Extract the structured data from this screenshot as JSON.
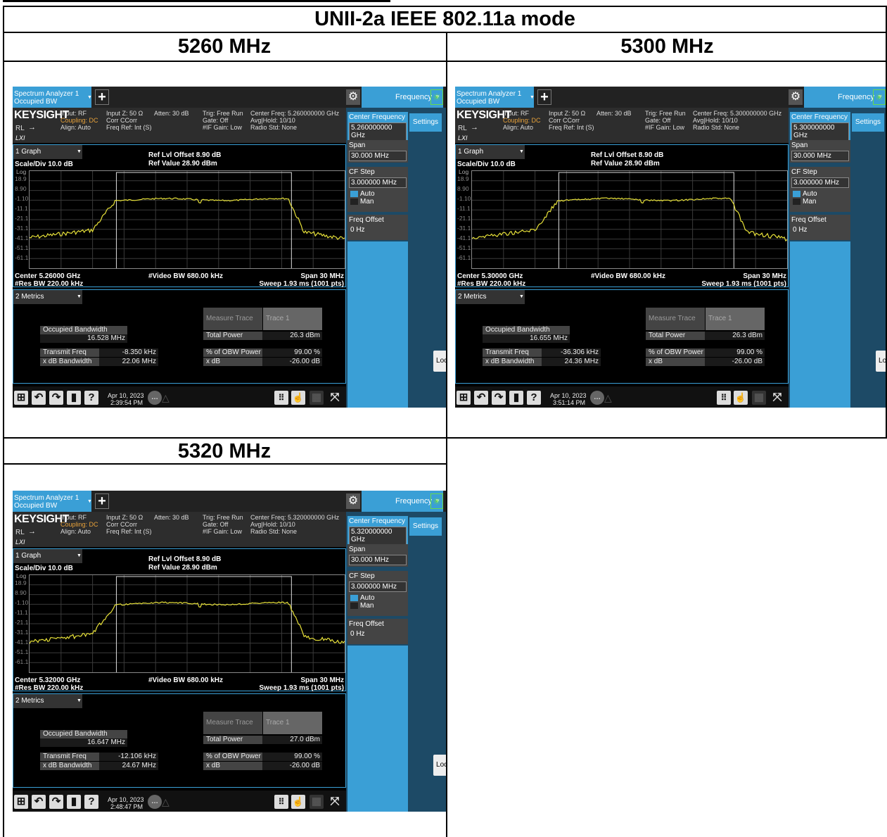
{
  "document": {
    "title": "UNII-2a IEEE 802.11a mode",
    "panels": [
      {
        "heading": "5260 MHz",
        "analyzer": {
          "tab_label_1": "Spectrum Analyzer 1",
          "tab_label_2": "Occupied BW",
          "mode_button": "Frequency",
          "brand": "KEYSIGHT",
          "status": {
            "input": "Input: RF",
            "coupling": "Coupling: DC",
            "align": "Align: Auto",
            "input_z": "Input Z: 50 Ω",
            "corr": "Corr CCorr",
            "freq_ref": "Freq Ref: Int (S)",
            "atten": "Atten: 30 dB",
            "trig": "Trig: Free Run",
            "gate": "Gate: Off",
            "if_gain": "#IF Gain: Low",
            "center_freq": "Center Freq: 5.260000000 GHz",
            "avg_hold": "Avg|Hold: 10/10",
            "radio_std": "Radio Std: None",
            "rl": "RL"
          },
          "graph_dropdown": "1 Graph",
          "ref_offset": "Ref Lvl Offset 8.90 dB",
          "ref_value": "Ref Value 28.90 dBm",
          "scale": "Scale/Div 10.0 dB",
          "log_label": "Log",
          "y_ticks": [
            "18.9",
            "8.90",
            "-1.10",
            "-11.1",
            "-21.1",
            "-31.1",
            "-41.1",
            "-51.1",
            "-61.1"
          ],
          "center": "Center 5.26000 GHz",
          "res_bw": "#Res BW 220.00 kHz",
          "video_bw": "#Video BW 680.00 kHz",
          "span": "Span 30 MHz",
          "sweep": "Sweep 1.93 ms (1001 pts)",
          "metrics_dropdown": "2 Metrics",
          "measure_trace": "Measure Trace",
          "trace": "Trace 1",
          "obw_label": "Occupied Bandwidth",
          "obw_value": "16.528 MHz",
          "tfe_label": "Transmit Freq Error",
          "tfe_value": "-8.350 kHz",
          "xdb_bw_label": "x dB Bandwidth",
          "xdb_bw_value": "22.06 MHz",
          "total_power_label": "Total Power",
          "total_power_value": "26.3 dBm",
          "obw_pct_label": "% of OBW Power",
          "obw_pct_value": "99.00 %",
          "xdb_label": "x dB",
          "xdb_value": "-26.00 dB",
          "date": "Apr 10, 2023",
          "time": "2:39:54 PM",
          "softkeys": {
            "center_freq_label": "Center Frequency",
            "center_freq_value": "5.260000000 GHz",
            "span_label": "Span",
            "span_value": "30.000 MHz",
            "cf_step_label": "CF Step",
            "cf_step_value": "3.000000 MHz",
            "auto": "Auto",
            "man": "Man",
            "freq_offset_label": "Freq Offset",
            "freq_offset_value": "0 Hz",
            "settings": "Settings",
            "local": "Local"
          }
        }
      },
      {
        "heading": "5300 MHz",
        "analyzer": {
          "tab_label_1": "Spectrum Analyzer 1",
          "tab_label_2": "Occupied BW",
          "mode_button": "Frequency",
          "brand": "KEYSIGHT",
          "status": {
            "input": "Input: RF",
            "coupling": "Coupling: DC",
            "align": "Align: Auto",
            "input_z": "Input Z: 50 Ω",
            "corr": "Corr CCorr",
            "freq_ref": "Freq Ref: Int (S)",
            "atten": "Atten: 30 dB",
            "trig": "Trig: Free Run",
            "gate": "Gate: Off",
            "if_gain": "#IF Gain: Low",
            "center_freq": "Center Freq: 5.300000000 GHz",
            "avg_hold": "Avg|Hold: 10/10",
            "radio_std": "Radio Std: None",
            "rl": "RL"
          },
          "graph_dropdown": "1 Graph",
          "ref_offset": "Ref Lvl Offset 8.90 dB",
          "ref_value": "Ref Value 28.90 dBm",
          "scale": "Scale/Div 10.0 dB",
          "log_label": "Log",
          "y_ticks": [
            "18.9",
            "8.90",
            "-1.10",
            "-11.1",
            "-21.1",
            "-31.1",
            "-41.1",
            "-51.1",
            "-61.1"
          ],
          "center": "Center 5.30000 GHz",
          "res_bw": "#Res BW 220.00 kHz",
          "video_bw": "#Video BW 680.00 kHz",
          "span": "Span 30 MHz",
          "sweep": "Sweep 1.93 ms (1001 pts)",
          "metrics_dropdown": "2 Metrics",
          "measure_trace": "Measure Trace",
          "trace": "Trace 1",
          "obw_label": "Occupied Bandwidth",
          "obw_value": "16.655 MHz",
          "tfe_label": "Transmit Freq Error",
          "tfe_value": "-36.306 kHz",
          "xdb_bw_label": "x dB Bandwidth",
          "xdb_bw_value": "24.36 MHz",
          "total_power_label": "Total Power",
          "total_power_value": "26.3 dBm",
          "obw_pct_label": "% of OBW Power",
          "obw_pct_value": "99.00 %",
          "xdb_label": "x dB",
          "xdb_value": "-26.00 dB",
          "date": "Apr 10, 2023",
          "time": "3:51:14 PM",
          "softkeys": {
            "center_freq_label": "Center Frequency",
            "center_freq_value": "5.300000000 GHz",
            "span_label": "Span",
            "span_value": "30.000 MHz",
            "cf_step_label": "CF Step",
            "cf_step_value": "3.000000 MHz",
            "auto": "Auto",
            "man": "Man",
            "freq_offset_label": "Freq Offset",
            "freq_offset_value": "0 Hz",
            "settings": "Settings",
            "local": "Local"
          }
        }
      },
      {
        "heading": "5320 MHz",
        "analyzer": {
          "tab_label_1": "Spectrum Analyzer 1",
          "tab_label_2": "Occupied BW",
          "mode_button": "Frequency",
          "brand": "KEYSIGHT",
          "status": {
            "input": "Input: RF",
            "coupling": "Coupling: DC",
            "align": "Align: Auto",
            "input_z": "Input Z: 50 Ω",
            "corr": "Corr CCorr",
            "freq_ref": "Freq Ref: Int (S)",
            "atten": "Atten: 30 dB",
            "trig": "Trig: Free Run",
            "gate": "Gate: Off",
            "if_gain": "#IF Gain: Low",
            "center_freq": "Center Freq: 5.320000000 GHz",
            "avg_hold": "Avg|Hold: 10/10",
            "radio_std": "Radio Std: None",
            "rl": "RL"
          },
          "graph_dropdown": "1 Graph",
          "ref_offset": "Ref Lvl Offset 8.90 dB",
          "ref_value": "Ref Value 28.90 dBm",
          "scale": "Scale/Div 10.0 dB",
          "log_label": "Log",
          "y_ticks": [
            "18.9",
            "8.90",
            "-1.10",
            "-11.1",
            "-21.1",
            "-31.1",
            "-41.1",
            "-51.1",
            "-61.1"
          ],
          "center": "Center 5.32000 GHz",
          "res_bw": "#Res BW 220.00 kHz",
          "video_bw": "#Video BW 680.00 kHz",
          "span": "Span 30 MHz",
          "sweep": "Sweep 1.93 ms (1001 pts)",
          "metrics_dropdown": "2 Metrics",
          "measure_trace": "Measure Trace",
          "trace": "Trace 1",
          "obw_label": "Occupied Bandwidth",
          "obw_value": "16.647 MHz",
          "tfe_label": "Transmit Freq Error",
          "tfe_value": "-12.106 kHz",
          "xdb_bw_label": "x dB Bandwidth",
          "xdb_bw_value": "24.67 MHz",
          "total_power_label": "Total Power",
          "total_power_value": "27.0 dBm",
          "obw_pct_label": "% of OBW Power",
          "obw_pct_value": "99.00 %",
          "xdb_label": "x dB",
          "xdb_value": "-26.00 dB",
          "date": "Apr 10, 2023",
          "time": "2:48:47 PM",
          "softkeys": {
            "center_freq_label": "Center Frequency",
            "center_freq_value": "5.320000000 GHz",
            "span_label": "Span",
            "span_value": "30.000 MHz",
            "cf_step_label": "CF Step",
            "cf_step_value": "3.000000 MHz",
            "auto": "Auto",
            "man": "Man",
            "freq_offset_label": "Freq Offset",
            "freq_offset_value": "0 Hz",
            "settings": "Settings",
            "local": "Local"
          }
        }
      }
    ]
  },
  "colors": {
    "accent_blue": "#3a9fd6",
    "trace_yellow": "#e8e23a",
    "status_orange": "#e8a23a",
    "panel_dark": "#1d4a66"
  },
  "icons": [
    "plus-icon",
    "gear-icon",
    "windows-icon",
    "undo-icon",
    "redo-icon",
    "file-icon",
    "help-icon",
    "chat-icon",
    "keypad-icon",
    "touch-icon",
    "grid-icon",
    "fullscreen-icon",
    "spinner-icon"
  ]
}
